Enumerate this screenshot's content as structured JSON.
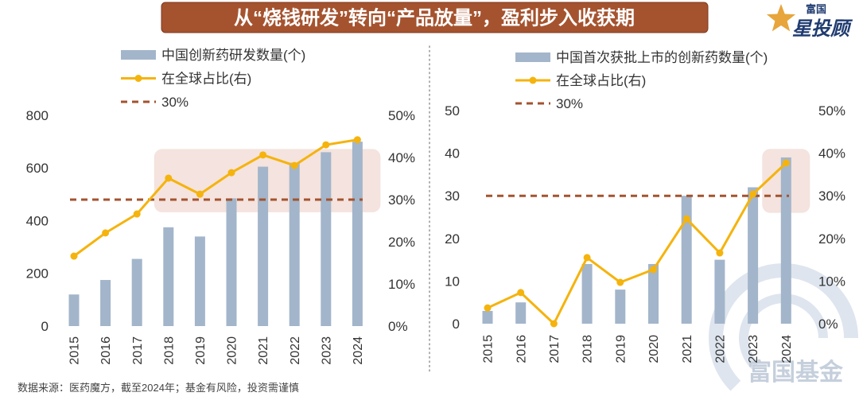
{
  "page": {
    "title": "从“烧钱研发”转向“产品放量”，盈利步入收获期",
    "source": "数据来源：医药魔方，截至2024年；基金有风险，投资需谨慎",
    "logo": {
      "top": "富国",
      "main": "星投顾"
    },
    "watermark": "富国基金",
    "colors": {
      "banner": "#a5532f",
      "bar": "#a3b5ca",
      "line": "#f5b30d",
      "reference": "#a3532f",
      "highlight": "#f3e0da",
      "logo_navy": "#1f3b70",
      "logo_gold": "#e7a53b",
      "watermark": "#d9e1ec"
    }
  },
  "chart_data": [
    {
      "type": "bar",
      "title": "",
      "categories": [
        "2015",
        "2016",
        "2017",
        "2018",
        "2019",
        "2020",
        "2021",
        "2022",
        "2023",
        "2024"
      ],
      "series": [
        {
          "name": "中国创新药研发数量(个)",
          "type": "bar",
          "axis": "left",
          "values": [
            120,
            175,
            255,
            375,
            340,
            485,
            605,
            620,
            660,
            700
          ]
        },
        {
          "name": "在全球占比(右)",
          "type": "line",
          "axis": "right",
          "values": [
            16.6,
            22.1,
            26.6,
            35.1,
            31.3,
            36.4,
            40.6,
            38.1,
            43.0,
            44.2
          ]
        }
      ],
      "reference_line": {
        "name": "30%",
        "axis": "right",
        "value": 30
      },
      "xlabel": "",
      "ylabel": "",
      "y2label": "",
      "ylim": [
        0,
        800
      ],
      "y_ticks": [
        0,
        200,
        400,
        600,
        800
      ],
      "y2lim": [
        0,
        50
      ],
      "y2_ticks": [
        "0%",
        "10%",
        "20%",
        "30%",
        "40%",
        "50%"
      ],
      "grid": false,
      "legend": "top",
      "highlight": {
        "x_from": "2018",
        "x_to": "2024",
        "y2_from": 27,
        "y2_to": 42
      }
    },
    {
      "type": "bar",
      "title": "",
      "categories": [
        "2015",
        "2016",
        "2017",
        "2018",
        "2019",
        "2020",
        "2021",
        "2022",
        "2023",
        "2024"
      ],
      "series": [
        {
          "name": "中国首次获批上市的创新药数量(个)",
          "type": "bar",
          "axis": "left",
          "values": [
            3,
            5,
            0,
            14,
            8,
            14,
            30,
            15,
            32,
            39
          ]
        },
        {
          "name": "在全球占比(右)",
          "type": "line",
          "axis": "right",
          "values": [
            3.7,
            7.3,
            0,
            15.5,
            9.7,
            12.7,
            24.6,
            16.6,
            30.4,
            37.7
          ]
        }
      ],
      "reference_line": {
        "name": "30%",
        "axis": "right",
        "value": 30
      },
      "xlabel": "",
      "ylabel": "",
      "y2label": "",
      "ylim": [
        0,
        50
      ],
      "y_ticks": [
        0,
        10,
        20,
        30,
        40,
        50
      ],
      "y2lim": [
        0,
        50
      ],
      "y2_ticks": [
        "0%",
        "10%",
        "20%",
        "30%",
        "40%",
        "50%"
      ],
      "grid": false,
      "legend": "top",
      "highlight": {
        "x_from": "2024",
        "x_to": "2024",
        "y2_from": 26,
        "y2_to": 41
      }
    }
  ]
}
